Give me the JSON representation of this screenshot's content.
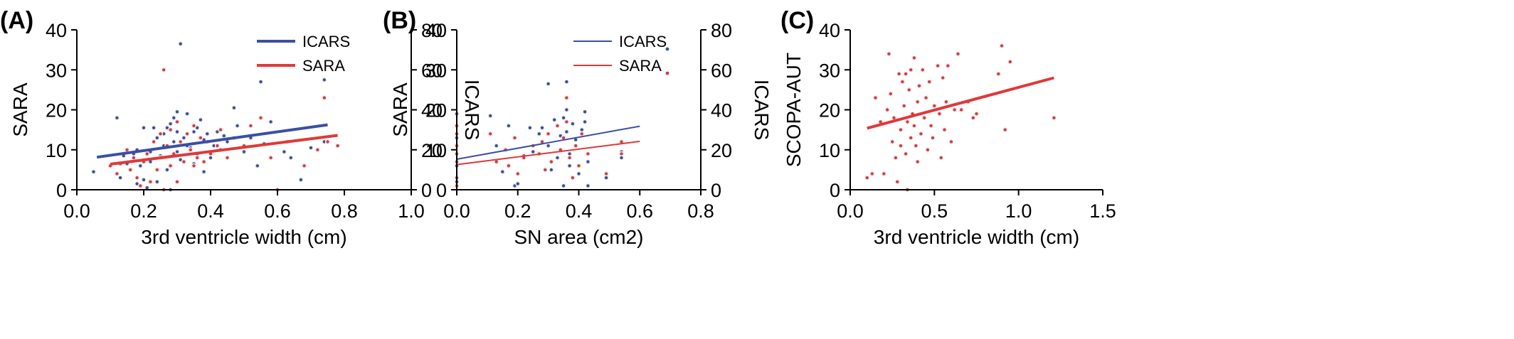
{
  "chart_data": [
    {
      "type": "scatter",
      "panel_label": "(A)",
      "xlabel": "3rd ventricle width (cm)",
      "ylabel": "SARA",
      "y2label": "ICARS",
      "xlim": [
        0.0,
        1.0
      ],
      "ylim": [
        0,
        40
      ],
      "y2lim": [
        0,
        80
      ],
      "xticks": [
        "0.0",
        "0.2",
        "0.4",
        "0.6",
        "0.8",
        "1.0"
      ],
      "yticks": [
        "0",
        "10",
        "20",
        "30",
        "40"
      ],
      "y2ticks": [
        "0",
        "20",
        "40",
        "60",
        "80"
      ],
      "grid": false,
      "legend_position": "top-right",
      "series": [
        {
          "name": "ICARS",
          "color": "#3a4fa3",
          "axis": "right",
          "trend": [
            [
              0.06,
              16.3
            ],
            [
              0.75,
              32.5
            ]
          ],
          "trend_width": 4,
          "points": [
            [
              0.05,
              9
            ],
            [
              0.12,
              36
            ],
            [
              0.13,
              6
            ],
            [
              0.14,
              17
            ],
            [
              0.15,
              13
            ],
            [
              0.17,
              18
            ],
            [
              0.18,
              20
            ],
            [
              0.18,
              3
            ],
            [
              0.19,
              12
            ],
            [
              0.2,
              5
            ],
            [
              0.2,
              31
            ],
            [
              0.21,
              1
            ],
            [
              0.22,
              19
            ],
            [
              0.22,
              14
            ],
            [
              0.23,
              31
            ],
            [
              0.24,
              26
            ],
            [
              0.24,
              4
            ],
            [
              0.25,
              17
            ],
            [
              0.26,
              22
            ],
            [
              0.26,
              28
            ],
            [
              0.27,
              31
            ],
            [
              0.27,
              10
            ],
            [
              0.28,
              33
            ],
            [
              0.28,
              0
            ],
            [
              0.29,
              36
            ],
            [
              0.29,
              24
            ],
            [
              0.3,
              39
            ],
            [
              0.3,
              29
            ],
            [
              0.3,
              19
            ],
            [
              0.31,
              73
            ],
            [
              0.31,
              15
            ],
            [
              0.32,
              26
            ],
            [
              0.33,
              38
            ],
            [
              0.33,
              22
            ],
            [
              0.34,
              21
            ],
            [
              0.35,
              29
            ],
            [
              0.35,
              13
            ],
            [
              0.36,
              31
            ],
            [
              0.36,
              18
            ],
            [
              0.37,
              35
            ],
            [
              0.38,
              25
            ],
            [
              0.38,
              9
            ],
            [
              0.39,
              28
            ],
            [
              0.4,
              16
            ],
            [
              0.41,
              22
            ],
            [
              0.42,
              29
            ],
            [
              0.43,
              20
            ],
            [
              0.44,
              27
            ],
            [
              0.45,
              24
            ],
            [
              0.47,
              41
            ],
            [
              0.48,
              32
            ],
            [
              0.5,
              19
            ],
            [
              0.52,
              26
            ],
            [
              0.54,
              12
            ],
            [
              0.55,
              54
            ],
            [
              0.56,
              23
            ],
            [
              0.58,
              34
            ],
            [
              0.62,
              19
            ],
            [
              0.64,
              16
            ],
            [
              0.67,
              5
            ],
            [
              0.7,
              21
            ],
            [
              0.74,
              55
            ],
            [
              0.74,
              24
            ]
          ]
        },
        {
          "name": "SARA",
          "color": "#e03838",
          "axis": "left",
          "trend": [
            [
              0.1,
              6.4
            ],
            [
              0.78,
              13.6
            ]
          ],
          "trend_width": 4,
          "points": [
            [
              0.1,
              6
            ],
            [
              0.12,
              4
            ],
            [
              0.13,
              6.5
            ],
            [
              0.15,
              10
            ],
            [
              0.16,
              5
            ],
            [
              0.17,
              8
            ],
            [
              0.18,
              3
            ],
            [
              0.19,
              1
            ],
            [
              0.2,
              7
            ],
            [
              0.21,
              9
            ],
            [
              0.22,
              2
            ],
            [
              0.23,
              12
            ],
            [
              0.24,
              5
            ],
            [
              0.25,
              8
            ],
            [
              0.25,
              14
            ],
            [
              0.26,
              30
            ],
            [
              0.26,
              0
            ],
            [
              0.27,
              11
            ],
            [
              0.28,
              6
            ],
            [
              0.28,
              15
            ],
            [
              0.29,
              9
            ],
            [
              0.3,
              2
            ],
            [
              0.3,
              17
            ],
            [
              0.31,
              12
            ],
            [
              0.32,
              7
            ],
            [
              0.33,
              14
            ],
            [
              0.34,
              10
            ],
            [
              0.35,
              6
            ],
            [
              0.35,
              16
            ],
            [
              0.36,
              8
            ],
            [
              0.37,
              13
            ],
            [
              0.38,
              7
            ],
            [
              0.39,
              12
            ],
            [
              0.4,
              9
            ],
            [
              0.42,
              11
            ],
            [
              0.43,
              15
            ],
            [
              0.45,
              8
            ],
            [
              0.47,
              13
            ],
            [
              0.5,
              11
            ],
            [
              0.52,
              16
            ],
            [
              0.55,
              18
            ],
            [
              0.58,
              8
            ],
            [
              0.6,
              0
            ],
            [
              0.63,
              12
            ],
            [
              0.68,
              6
            ],
            [
              0.72,
              10
            ],
            [
              0.74,
              23
            ],
            [
              0.75,
              12
            ],
            [
              0.78,
              11
            ]
          ]
        }
      ]
    },
    {
      "type": "scatter",
      "panel_label": "(B)",
      "xlabel": "SN area (cm2)",
      "ylabel": "SARA",
      "y2label": "ICARS",
      "xlim": [
        0.0,
        0.8
      ],
      "ylim": [
        0,
        40
      ],
      "y2lim": [
        0,
        80
      ],
      "xticks": [
        "0.0",
        "0.2",
        "0.4",
        "0.6",
        "0.8"
      ],
      "yticks": [
        "0",
        "10",
        "20",
        "30",
        "40"
      ],
      "y2ticks": [
        "0",
        "20",
        "40",
        "60",
        "80"
      ],
      "grid": false,
      "legend_position": "top-right",
      "series": [
        {
          "name": "ICARS",
          "color": "#3a4fa3",
          "axis": "right",
          "trend": [
            [
              0.0,
              15.3
            ],
            [
              0.6,
              31.8
            ]
          ],
          "trend_width": 2,
          "points": [
            [
              0.0,
              38
            ],
            [
              0.0,
              32
            ],
            [
              0.0,
              26
            ],
            [
              0.0,
              22
            ],
            [
              0.0,
              18
            ],
            [
              0.0,
              12
            ],
            [
              0.0,
              6
            ],
            [
              0.0,
              4
            ],
            [
              0.0,
              2
            ],
            [
              0.11,
              37
            ],
            [
              0.13,
              22
            ],
            [
              0.15,
              9
            ],
            [
              0.16,
              20
            ],
            [
              0.17,
              32
            ],
            [
              0.19,
              2
            ],
            [
              0.2,
              3
            ],
            [
              0.22,
              17
            ],
            [
              0.24,
              31
            ],
            [
              0.25,
              19
            ],
            [
              0.27,
              28
            ],
            [
              0.28,
              31
            ],
            [
              0.3,
              22
            ],
            [
              0.3,
              53
            ],
            [
              0.31,
              10
            ],
            [
              0.32,
              35
            ],
            [
              0.33,
              16
            ],
            [
              0.34,
              27
            ],
            [
              0.35,
              2
            ],
            [
              0.35,
              36
            ],
            [
              0.36,
              54
            ],
            [
              0.36,
              40
            ],
            [
              0.36,
              29
            ],
            [
              0.37,
              18
            ],
            [
              0.37,
              12
            ],
            [
              0.38,
              33
            ],
            [
              0.39,
              25
            ],
            [
              0.4,
              8
            ],
            [
              0.41,
              30
            ],
            [
              0.42,
              39
            ],
            [
              0.42,
              34
            ],
            [
              0.43,
              14
            ],
            [
              0.43,
              2
            ],
            [
              0.49,
              6
            ],
            [
              0.54,
              19
            ],
            [
              0.54,
              16
            ]
          ]
        },
        {
          "name": "SARA",
          "color": "#e03838",
          "axis": "left",
          "trend": [
            [
              0.0,
              6.3
            ],
            [
              0.6,
              12.1
            ]
          ],
          "trend_width": 2,
          "points": [
            [
              0.0,
              16
            ],
            [
              0.0,
              14
            ],
            [
              0.0,
              11
            ],
            [
              0.0,
              9
            ],
            [
              0.0,
              7
            ],
            [
              0.0,
              3
            ],
            [
              0.0,
              1
            ],
            [
              0.11,
              14
            ],
            [
              0.13,
              7
            ],
            [
              0.16,
              10
            ],
            [
              0.17,
              6
            ],
            [
              0.19,
              13
            ],
            [
              0.2,
              4
            ],
            [
              0.22,
              8
            ],
            [
              0.25,
              11
            ],
            [
              0.27,
              9
            ],
            [
              0.28,
              12
            ],
            [
              0.29,
              5
            ],
            [
              0.3,
              14
            ],
            [
              0.31,
              7
            ],
            [
              0.33,
              16
            ],
            [
              0.34,
              10
            ],
            [
              0.35,
              13
            ],
            [
              0.36,
              23
            ],
            [
              0.36,
              17
            ],
            [
              0.37,
              8
            ],
            [
              0.38,
              3
            ],
            [
              0.39,
              11
            ],
            [
              0.4,
              6
            ],
            [
              0.41,
              14
            ],
            [
              0.43,
              9
            ],
            [
              0.49,
              4
            ],
            [
              0.54,
              9
            ],
            [
              0.54,
              12
            ]
          ]
        }
      ]
    },
    {
      "type": "scatter",
      "panel_label": "(C)",
      "xlabel": "3rd ventricle width (cm)",
      "ylabel": "SCOPA-AUT",
      "xlim": [
        0.0,
        1.5
      ],
      "ylim": [
        0,
        40
      ],
      "xticks": [
        "0.0",
        "0.5",
        "1.0",
        "1.5"
      ],
      "yticks": [
        "0",
        "10",
        "20",
        "30",
        "40"
      ],
      "grid": false,
      "series": [
        {
          "color": "#e03838",
          "axis": "left",
          "trend": [
            [
              0.1,
              15.4
            ],
            [
              1.21,
              28.0
            ]
          ],
          "trend_width": 4,
          "points": [
            [
              0.1,
              3
            ],
            [
              0.13,
              4
            ],
            [
              0.15,
              23
            ],
            [
              0.18,
              17
            ],
            [
              0.2,
              4
            ],
            [
              0.22,
              20
            ],
            [
              0.23,
              34
            ],
            [
              0.24,
              24
            ],
            [
              0.25,
              12
            ],
            [
              0.26,
              18
            ],
            [
              0.27,
              8
            ],
            [
              0.28,
              2
            ],
            [
              0.29,
              29
            ],
            [
              0.3,
              15
            ],
            [
              0.3,
              11
            ],
            [
              0.31,
              27
            ],
            [
              0.32,
              21
            ],
            [
              0.33,
              29
            ],
            [
              0.33,
              9
            ],
            [
              0.34,
              0
            ],
            [
              0.34,
              17
            ],
            [
              0.35,
              25
            ],
            [
              0.36,
              13
            ],
            [
              0.36,
              30
            ],
            [
              0.37,
              19
            ],
            [
              0.38,
              16
            ],
            [
              0.38,
              33
            ],
            [
              0.39,
              11
            ],
            [
              0.4,
              22
            ],
            [
              0.4,
              7
            ],
            [
              0.41,
              26
            ],
            [
              0.42,
              14
            ],
            [
              0.43,
              30
            ],
            [
              0.44,
              18
            ],
            [
              0.45,
              23
            ],
            [
              0.46,
              10
            ],
            [
              0.47,
              27
            ],
            [
              0.48,
              16
            ],
            [
              0.49,
              13
            ],
            [
              0.5,
              21
            ],
            [
              0.52,
              31
            ],
            [
              0.53,
              19
            ],
            [
              0.54,
              8
            ],
            [
              0.55,
              28
            ],
            [
              0.56,
              15
            ],
            [
              0.57,
              22
            ],
            [
              0.58,
              31
            ],
            [
              0.6,
              12
            ],
            [
              0.62,
              20
            ],
            [
              0.64,
              34
            ],
            [
              0.66,
              20
            ],
            [
              0.7,
              22
            ],
            [
              0.73,
              18
            ],
            [
              0.75,
              19
            ],
            [
              0.88,
              29
            ],
            [
              0.9,
              36
            ],
            [
              0.92,
              15
            ],
            [
              0.95,
              32
            ],
            [
              1.21,
              18
            ]
          ]
        }
      ]
    }
  ]
}
